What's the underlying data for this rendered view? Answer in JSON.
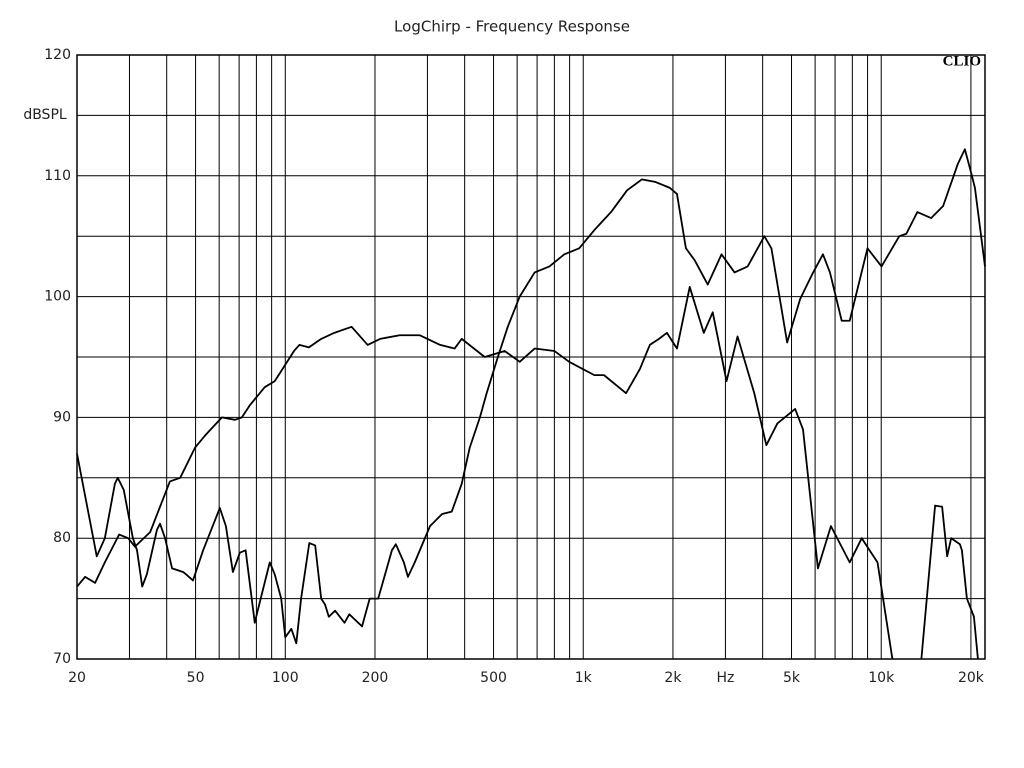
{
  "chart_data": {
    "type": "line",
    "title": "LogChirp - Frequency Response",
    "y_label": "dBSPL",
    "x_unit_label": "Hz",
    "brand": "CLIO",
    "x_log": true,
    "xlim": [
      20,
      22300
    ],
    "ylim": [
      70,
      120
    ],
    "yticks": [
      70,
      80,
      90,
      100,
      110,
      120
    ],
    "yminor": [
      75,
      85,
      95,
      105,
      115
    ],
    "xticks": [
      20,
      50,
      100,
      200,
      500,
      {
        "value": 1000,
        "label": "1k"
      },
      {
        "value": 2000,
        "label": "2k"
      },
      {
        "value": 3000,
        "label": "Hz"
      },
      {
        "value": 5000,
        "label": "5k"
      },
      {
        "value": 10000,
        "label": "10k"
      },
      {
        "value": 20000,
        "label": "20k"
      }
    ],
    "xgrid": [
      30,
      40,
      60,
      70,
      80,
      90,
      300,
      400,
      600,
      700,
      800,
      900,
      4000,
      6000,
      7000,
      8000,
      9000
    ],
    "grid": true,
    "series": [
      {
        "color": "#000000",
        "x": [
          20,
          21.3,
          23,
          24.8,
          27.7,
          29.7,
          31.3,
          35.2,
          41,
          44.4,
          49.8,
          53.8,
          61.3,
          67.8,
          71.5,
          76,
          85.3,
          92.2,
          107,
          111.5,
          120,
          132,
          146,
          167,
          189,
          208,
          242,
          283,
          331,
          370,
          391,
          467,
          545,
          612,
          687,
          800,
          897,
          1089,
          1174,
          1392,
          1549,
          1673,
          1795,
          1909,
          2063,
          2277,
          2538,
          2720,
          3026,
          3295,
          3750,
          4116,
          4483,
          5142,
          5465,
          6132,
          6780,
          7839,
          8603,
          9718,
          10903,
          12000,
          13640,
          15164,
          16011,
          16645,
          17170,
          18369,
          18655,
          19389,
          20470,
          21114
        ],
        "values": [
          76,
          76.8,
          76.3,
          78,
          80.3,
          80,
          79.3,
          80.5,
          84.7,
          85,
          87.5,
          88.5,
          90,
          89.8,
          90,
          91,
          92.5,
          93,
          95.5,
          96,
          95.8,
          96.5,
          97,
          97.5,
          96,
          96.5,
          96.8,
          96.8,
          96,
          95.7,
          96.5,
          95,
          95.5,
          94.6,
          95.7,
          95.5,
          94.6,
          93.5,
          93.5,
          92,
          94,
          96,
          96.5,
          97,
          95.7,
          100.8,
          97,
          98.7,
          93,
          96.7,
          92,
          87.7,
          89.5,
          90.7,
          89,
          77.5,
          81,
          78,
          80,
          78,
          70,
          null,
          70,
          82.7,
          82.6,
          78.5,
          80,
          79.5,
          79,
          75,
          73.5,
          70
        ]
      },
      {
        "color": "#000000",
        "x": [
          20,
          23.3,
          24.8,
          26.8,
          27.4,
          28.7,
          30.8,
          31.8,
          33.1,
          34.3,
          37.1,
          38,
          39.5,
          41.7,
          45.4,
          46.5,
          49,
          53,
          60.3,
          63.2,
          66.7,
          70.4,
          73.6,
          79,
          80.8,
          88.7,
          92.2,
          96.9,
          100,
          104.8,
          108.9,
          113,
          120.4,
          126,
          132,
          136,
          140,
          147,
          158,
          164,
          181,
          192,
          205,
          228,
          235,
          250,
          258,
          272,
          306,
          336,
          362,
          391,
          416,
          450,
          474,
          517,
          558,
          612,
          687,
          770,
          864,
          969,
          1089,
          1240,
          1403,
          1573,
          1741,
          1954,
          2063,
          2211,
          2367,
          2617,
          2911,
          3220,
          3563,
          4053,
          4280,
          4834,
          5345,
          5854,
          6374,
          6729,
          7369,
          7839,
          8994,
          10024,
          11496,
          12142,
          13222,
          14703,
          16137,
          18088,
          19089,
          20156,
          20630,
          22300
        ],
        "values": [
          87,
          78.5,
          80,
          84.5,
          85,
          84,
          80,
          79,
          76,
          77,
          80.7,
          81.2,
          80,
          77.5,
          77.2,
          77,
          76.5,
          79,
          82.5,
          81,
          77.2,
          78.8,
          79,
          73,
          74,
          78,
          77,
          75,
          71.8,
          72.5,
          71.3,
          75,
          79.6,
          79.4,
          75,
          74.5,
          73.5,
          74,
          73,
          73.7,
          72.7,
          75,
          75,
          79,
          79.5,
          78,
          76.8,
          78,
          81,
          82,
          82.2,
          84.5,
          87.5,
          90,
          92,
          95,
          97.5,
          100,
          102,
          102.5,
          103.5,
          104,
          105.5,
          107,
          108.8,
          109.7,
          109.5,
          109,
          108.5,
          104,
          103,
          101,
          103.5,
          102,
          102.5,
          105,
          104,
          96.2,
          99.8,
          101.8,
          103.5,
          102,
          98,
          98,
          104,
          102.5,
          105,
          105.2,
          107,
          106.5,
          107.5,
          111,
          112.2,
          110,
          109,
          102.5
        ]
      }
    ]
  }
}
